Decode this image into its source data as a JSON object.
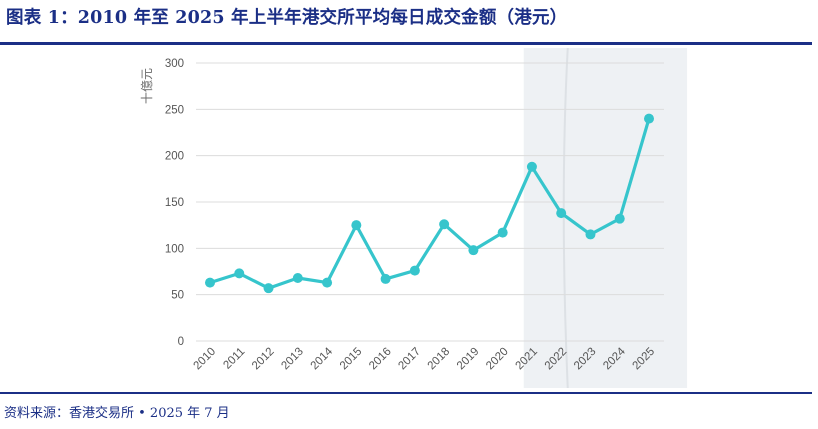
{
  "header": {
    "title": "图表 1：2010 年至 2025 年上半年港交所平均每日成交金额（港元）"
  },
  "footer": {
    "source": "资料来源：香港交易所 • 2025 年 7 月"
  },
  "colors": {
    "header_blue": "#1b2f86",
    "line": "#36c5cc",
    "highlight_band": "#eef1f4"
  },
  "chart_data": {
    "type": "line",
    "title": "",
    "xlabel": "",
    "ylabel": "十億元",
    "categories": [
      "2010",
      "2011",
      "2012",
      "2013",
      "2014",
      "2015",
      "2016",
      "2017",
      "2018",
      "2019",
      "2020",
      "2021",
      "2022",
      "2023",
      "2024",
      "2025"
    ],
    "series": [
      {
        "values": [
          63,
          73,
          57,
          68,
          63,
          125,
          67,
          76,
          126,
          98,
          117,
          188,
          138,
          115,
          132,
          240
        ]
      }
    ],
    "ylim": [
      0,
      300
    ],
    "yticks": [
      0,
      50,
      100,
      150,
      200,
      250,
      300
    ],
    "grid": true,
    "highlight_range": [
      "2021",
      "2025"
    ]
  }
}
